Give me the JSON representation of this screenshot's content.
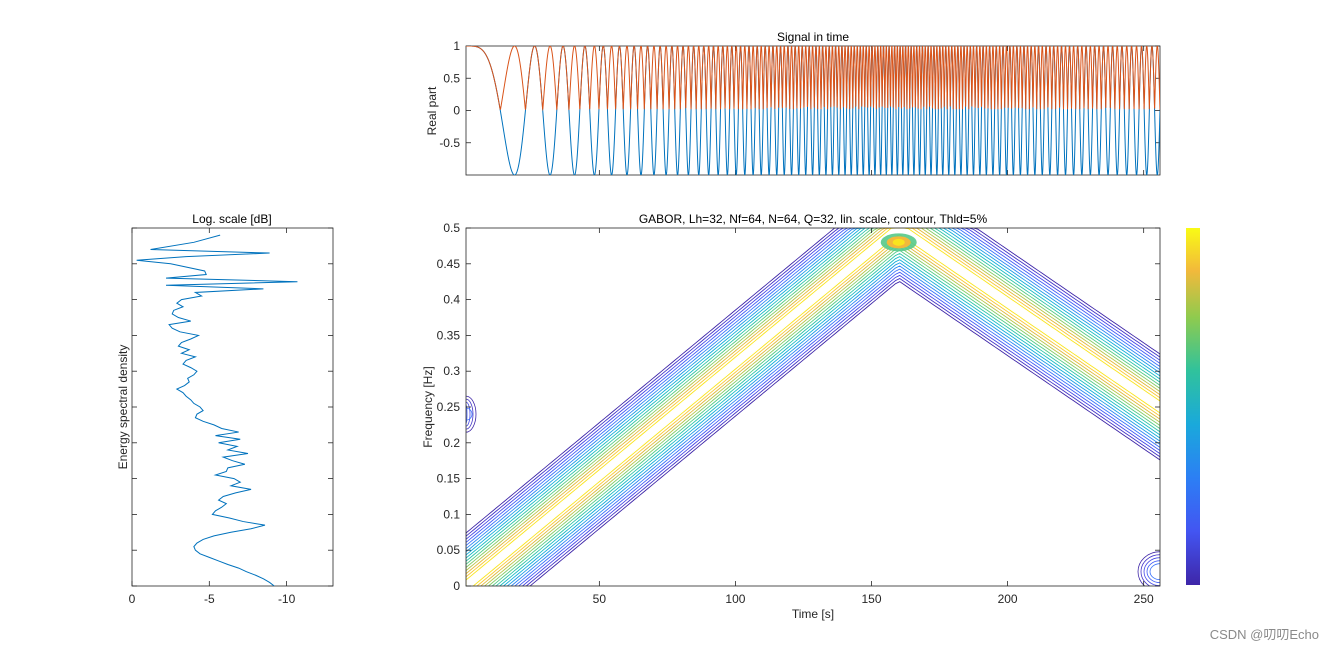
{
  "chart_data": [
    {
      "type": "line",
      "id": "signal",
      "title": "Signal in time",
      "xlabel": "",
      "ylabel": "Real part",
      "xlim": [
        1,
        256
      ],
      "ylim": [
        -1,
        1
      ],
      "yticks": [
        -0.5,
        0,
        0.5,
        1
      ],
      "ytick_labels": [
        "-0.5",
        "0",
        "0.5",
        "1"
      ],
      "signal_model": "linear FM sweep 0 to 0.5 Hz over t=1..160, then 0.5 to 0.25 Hz over t=160..256",
      "series": [
        {
          "name": "real part",
          "color": "#0072BD"
        },
        {
          "name": "envelope",
          "color": "#D95319"
        }
      ]
    },
    {
      "type": "line",
      "id": "spectrum",
      "title": "Log. scale [dB]",
      "ylabel": "Energy spectral density",
      "xlim": [
        0,
        -13
      ],
      "xticks": [
        0,
        -5,
        -10
      ],
      "xtick_labels": [
        "0",
        "-5",
        "-10"
      ],
      "ylim": [
        0,
        0.5
      ],
      "color": "#0072BD",
      "freq": [
        0.49,
        0.48,
        0.47,
        0.465,
        0.46,
        0.455,
        0.45,
        0.44,
        0.435,
        0.43,
        0.425,
        0.42,
        0.415,
        0.41,
        0.405,
        0.4,
        0.395,
        0.39,
        0.385,
        0.38,
        0.375,
        0.37,
        0.365,
        0.36,
        0.355,
        0.35,
        0.345,
        0.34,
        0.335,
        0.33,
        0.325,
        0.32,
        0.315,
        0.31,
        0.305,
        0.3,
        0.295,
        0.29,
        0.285,
        0.28,
        0.275,
        0.27,
        0.265,
        0.26,
        0.255,
        0.25,
        0.245,
        0.24,
        0.235,
        0.23,
        0.225,
        0.22,
        0.215,
        0.21,
        0.205,
        0.2,
        0.195,
        0.19,
        0.185,
        0.18,
        0.175,
        0.17,
        0.165,
        0.16,
        0.155,
        0.15,
        0.145,
        0.14,
        0.135,
        0.13,
        0.125,
        0.12,
        0.115,
        0.11,
        0.105,
        0.1,
        0.095,
        0.09,
        0.085,
        0.08,
        0.075,
        0.07,
        0.065,
        0.06,
        0.055,
        0.05,
        0.045,
        0.04,
        0.035,
        0.03,
        0.025,
        0.02,
        0.015,
        0.01,
        0.005,
        0.0
      ],
      "energy_db": [
        -5.7,
        -4.0,
        -1.2,
        -8.9,
        -3.5,
        -0.3,
        -2.5,
        -4.7,
        -4.8,
        -2.2,
        -10.7,
        -2.2,
        -8.5,
        -4.1,
        -4.5,
        -3.2,
        -2.9,
        -3.3,
        -2.7,
        -2.6,
        -3.0,
        -3.8,
        -2.4,
        -2.6,
        -3.1,
        -4.3,
        -3.8,
        -3.2,
        -3.0,
        -3.7,
        -3.2,
        -4.1,
        -3.5,
        -3.3,
        -3.8,
        -4.2,
        -4.0,
        -3.6,
        -3.7,
        -3.4,
        -2.9,
        -3.3,
        -3.5,
        -3.8,
        -4.0,
        -4.4,
        -4.6,
        -4.2,
        -4.1,
        -4.6,
        -5.3,
        -5.8,
        -6.9,
        -5.4,
        -7.0,
        -5.6,
        -6.8,
        -6.2,
        -7.5,
        -5.9,
        -6.5,
        -7.3,
        -6.2,
        -6.1,
        -5.4,
        -6.6,
        -7.0,
        -6.4,
        -7.7,
        -6.7,
        -5.9,
        -5.6,
        -6.1,
        -5.8,
        -5.4,
        -5.2,
        -6.3,
        -7.2,
        -8.6,
        -7.7,
        -6.4,
        -5.3,
        -4.6,
        -4.2,
        -4.0,
        -4.1,
        -4.4,
        -5.0,
        -5.6,
        -6.2,
        -6.9,
        -7.4,
        -8.0,
        -8.5,
        -8.9,
        -9.2
      ]
    },
    {
      "type": "contour",
      "id": "tfr",
      "title": "GABOR, Lh=32, Nf=64, N=64, Q=32, lin. scale, contour, Thld=5%",
      "xlabel": "Time [s]",
      "ylabel": "Frequency [Hz]",
      "xlim": [
        1,
        256
      ],
      "ylim": [
        0,
        0.5
      ],
      "xticks": [
        50,
        100,
        150,
        200,
        250
      ],
      "xtick_labels": [
        "50",
        "100",
        "150",
        "200",
        "250"
      ],
      "yticks": [
        0,
        0.05,
        0.1,
        0.15,
        0.2,
        0.25,
        0.3,
        0.35,
        0.4,
        0.45,
        0.5
      ],
      "ytick_labels": [
        "0",
        "0.05",
        "0.1",
        "0.15",
        "0.2",
        "0.25",
        "0.3",
        "0.35",
        "0.4",
        "0.45",
        "0.5"
      ],
      "ridge": {
        "t": [
          1,
          160,
          256
        ],
        "f": [
          0.0,
          0.5,
          0.25
        ]
      },
      "peak": {
        "t": 160,
        "f": 0.48
      },
      "colormap": "parula",
      "colorbar": "right"
    }
  ],
  "watermark": "CSDN @叨叨Echo"
}
